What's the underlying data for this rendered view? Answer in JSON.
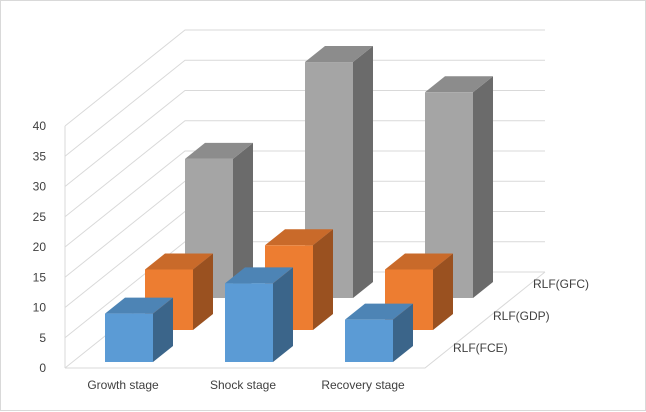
{
  "chart_data": {
    "type": "bar",
    "variant": "3d-column",
    "categories": [
      "Growth stage",
      "Shock stage",
      "Recovery stage"
    ],
    "series": [
      {
        "name": "RLF(FCE)",
        "values": [
          8,
          13,
          7
        ],
        "color": "#5b9bd5"
      },
      {
        "name": "RLF(GDP)",
        "values": [
          10,
          14,
          10
        ],
        "color": "#ed7d31"
      },
      {
        "name": "RLF(GFC)",
        "values": [
          23,
          39,
          34
        ],
        "color": "#a5a5a5"
      }
    ],
    "y_ticks": [
      "0",
      "5",
      "10",
      "15",
      "20",
      "25",
      "30",
      "35",
      "40"
    ],
    "ylim": [
      0,
      40
    ],
    "grid": true,
    "legend": "none"
  }
}
